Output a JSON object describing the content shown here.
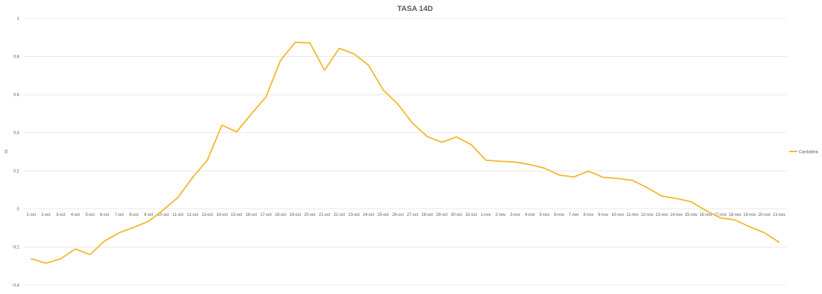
{
  "chart_data": {
    "type": "line",
    "title": "TASA 14D",
    "ylabel": "IA",
    "xlabel": "",
    "ylim": [
      -0.4,
      1
    ],
    "yticks": [
      -0.4,
      -0.2,
      0,
      0.2,
      0.4,
      0.6,
      0.8,
      1
    ],
    "ytick_labels": [
      "-0,4",
      "-0,2",
      "0",
      "0,2",
      "0,4",
      "0,6",
      "0,8",
      "1"
    ],
    "grid": true,
    "legend_position": "right",
    "categories": [
      "1-oct",
      "2-oct",
      "3-oct",
      "4-oct",
      "5-oct",
      "6-oct",
      "7-oct",
      "8-oct",
      "9-oct",
      "10-oct",
      "11-oct",
      "12-oct",
      "13-oct",
      "14-oct",
      "15-oct",
      "16-oct",
      "17-oct",
      "18-oct",
      "19-oct",
      "20-oct",
      "21-oct",
      "22-oct",
      "23-oct",
      "24-oct",
      "25-oct",
      "26-oct",
      "27-oct",
      "28-oct",
      "29-oct",
      "30-oct",
      "31-oct",
      "1-nov",
      "2-nov",
      "3-nov",
      "4-nov",
      "5-nov",
      "6-nov",
      "7-nov",
      "8-nov",
      "9-nov",
      "10-nov",
      "11-nov",
      "12-nov",
      "13-nov",
      "14-nov",
      "15-nov",
      "16-nov",
      "17-nov",
      "18-nov",
      "19-nov",
      "20-nov",
      "21-nov"
    ],
    "series": [
      {
        "name": "Cantabria",
        "color": "#F2B933",
        "values": [
          -0.262,
          -0.285,
          -0.262,
          -0.21,
          -0.24,
          -0.168,
          -0.125,
          -0.096,
          -0.065,
          -0.005,
          0.06,
          0.165,
          0.255,
          0.44,
          0.405,
          0.498,
          0.588,
          0.78,
          0.875,
          0.872,
          0.728,
          0.843,
          0.815,
          0.755,
          0.625,
          0.55,
          0.45,
          0.38,
          0.35,
          0.378,
          0.338,
          0.256,
          0.25,
          0.246,
          0.233,
          0.214,
          0.178,
          0.168,
          0.198,
          0.166,
          0.16,
          0.15,
          0.112,
          0.068,
          0.055,
          0.038,
          -0.008,
          -0.047,
          -0.058,
          -0.094,
          -0.125,
          -0.175
        ]
      }
    ]
  }
}
